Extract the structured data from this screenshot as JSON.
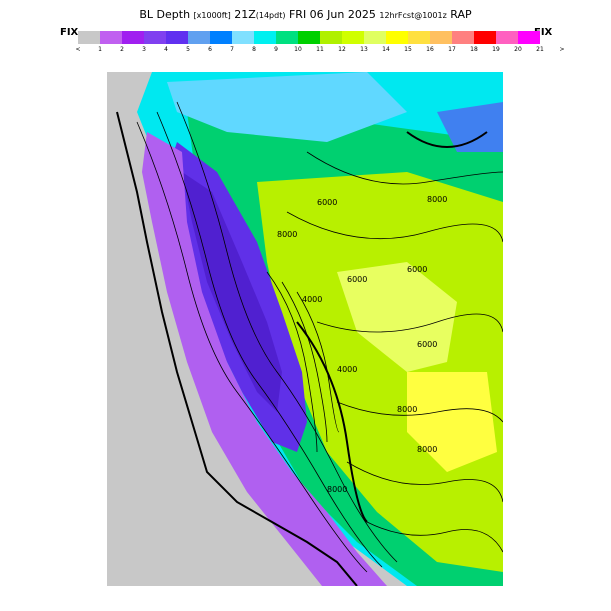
{
  "title": {
    "main_a": "BL Depth",
    "units": "[x1000ft]",
    "time": "21Z",
    "pdt": "(14pdt)",
    "date": "FRI 06 Jun 2025",
    "fcst": "12hrFcst@1001z",
    "model": "RAP"
  },
  "legend": {
    "left_label": "FIX",
    "right_label": "FIX",
    "colors": [
      "#c8c8c8",
      "#c060f0",
      "#a020f0",
      "#8040f0",
      "#6030f0",
      "#60a0f0",
      "#0080ff",
      "#80e0ff",
      "#00f0f0",
      "#00e080",
      "#00d000",
      "#b0f000",
      "#d0ff00",
      "#e0ff60",
      "#ffff00",
      "#ffe040",
      "#ffc060",
      "#ff8080",
      "#ff0000",
      "#ff60c0",
      "#ff00ff"
    ],
    "ticks": [
      "<",
      "1",
      "2",
      "3",
      "4",
      "5",
      "6",
      "7",
      "8",
      "9",
      "10",
      "11",
      "12",
      "13",
      "14",
      "15",
      "16",
      "17",
      "18",
      "19",
      "20",
      "21",
      ">"
    ]
  },
  "map": {
    "contour_labels": [
      "6000",
      "8000",
      "8000",
      "6000",
      "6000",
      "4000",
      "6000",
      "4000",
      "8000",
      "8000",
      "8000"
    ]
  }
}
